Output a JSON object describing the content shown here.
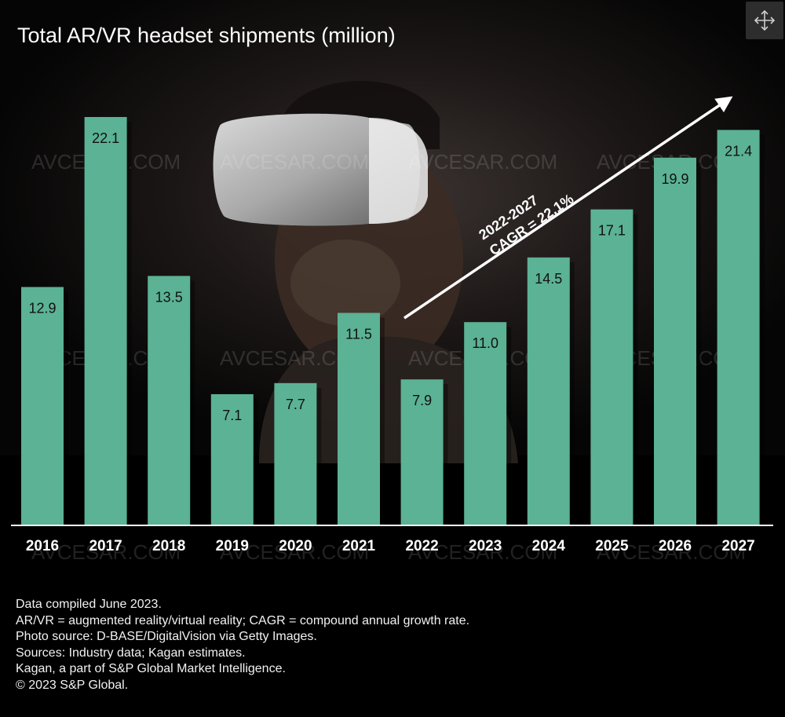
{
  "chart_data": {
    "type": "bar",
    "title": "Total AR/VR headset shipments (million)",
    "categories": [
      "2016",
      "2017",
      "2018",
      "2019",
      "2020",
      "2021",
      "2022",
      "2023",
      "2024",
      "2025",
      "2026",
      "2027"
    ],
    "values": [
      12.9,
      22.1,
      13.5,
      7.1,
      7.7,
      11.5,
      7.9,
      11.0,
      14.5,
      17.1,
      19.9,
      21.4
    ],
    "value_labels": [
      "12.9",
      "22.1",
      "13.5",
      "7.1",
      "7.7",
      "11.5",
      "7.9",
      "11.0",
      "14.5",
      "17.1",
      "19.9",
      "21.4"
    ],
    "ylim": [
      0,
      22.1
    ],
    "annotation": {
      "lines": [
        "2022-2027",
        "CAGR = 22.1%"
      ],
      "from_category": "2021",
      "to_category": "2027"
    },
    "grid": false,
    "legend": "none",
    "colors": {
      "bar": "#5bb294",
      "text": "#ffffff",
      "baseline": "#ffffff",
      "background": "#000000"
    }
  },
  "footnotes": [
    "Data compiled June 2023.",
    "AR/VR = augmented reality/virtual reality; CAGR = compound annual growth rate.",
    "Photo source: D-BASE/DigitalVision via Getty Images.",
    "Sources: Industry data; Kagan estimates.",
    "Kagan, a part of S&P Global Market Intelligence.",
    "© 2023 S&P Global."
  ],
  "watermark": "AVCESAR.COM",
  "expand_icon": "expand-arrows-icon"
}
